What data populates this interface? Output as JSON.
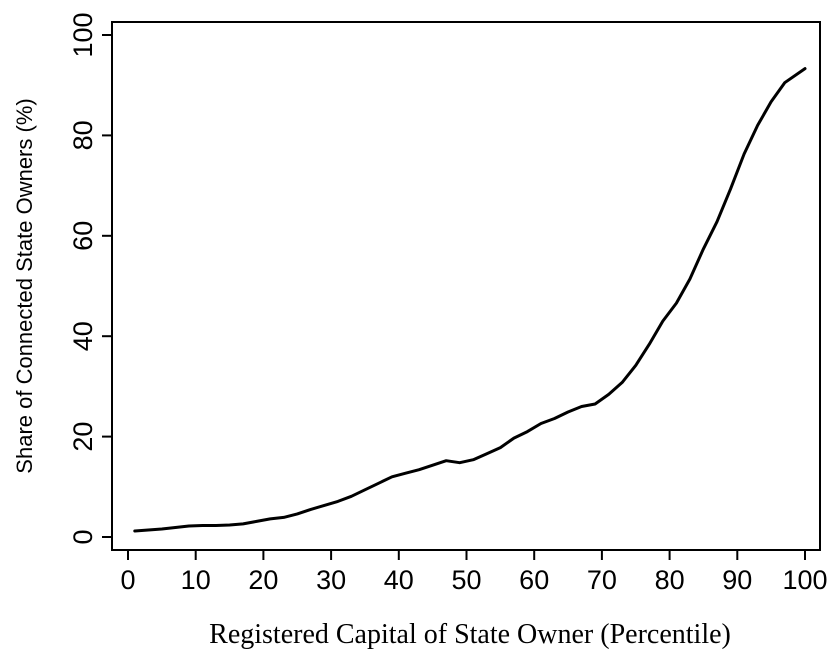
{
  "chart_data": {
    "type": "line",
    "title": "",
    "xlabel": "Registered Capital of State Owner (Percentile)",
    "ylabel": "Share of Connected State Owners (%)",
    "xlim": [
      0,
      100
    ],
    "ylim": [
      0,
      100
    ],
    "xticks": [
      0,
      10,
      20,
      30,
      40,
      50,
      60,
      70,
      80,
      90,
      100
    ],
    "yticks": [
      0,
      20,
      40,
      60,
      80,
      100
    ],
    "grid": false,
    "legend": "none",
    "line_color": "#000000",
    "series": [
      {
        "x": [
          1,
          3,
          5,
          7,
          9,
          11,
          13,
          15,
          17,
          19,
          21,
          23,
          25,
          27,
          29,
          31,
          33,
          35,
          37,
          39,
          41,
          43,
          45,
          47,
          49,
          51,
          53,
          55,
          57,
          59,
          61,
          63,
          65,
          67,
          69,
          71,
          73,
          75,
          77,
          79,
          81,
          83,
          85,
          87,
          89,
          91,
          93,
          95,
          97,
          100
        ],
        "values": [
          1.2,
          1.4,
          1.6,
          1.9,
          2.2,
          2.3,
          2.3,
          2.4,
          2.6,
          3.1,
          3.6,
          3.9,
          4.6,
          5.5,
          6.3,
          7.1,
          8.1,
          9.4,
          10.7,
          12.0,
          12.7,
          13.4,
          14.3,
          15.2,
          14.8,
          15.4,
          16.6,
          17.8,
          19.7,
          21.0,
          22.6,
          23.6,
          24.9,
          26.0,
          26.5,
          28.4,
          30.8,
          34.2,
          38.4,
          43.0,
          46.6,
          51.4,
          57.4,
          62.8,
          69.3,
          76.3,
          82.0,
          86.7,
          90.5,
          93.3
        ]
      }
    ]
  }
}
